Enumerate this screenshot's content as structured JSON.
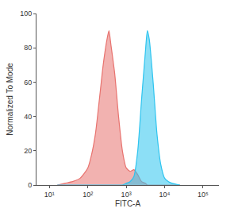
{
  "chart_data": {
    "type": "area",
    "x_label": "FITC-A",
    "y_label": "Normalized To Mode",
    "log": "x",
    "grid": false,
    "x": [
      16,
      25,
      40,
      63,
      100,
      126,
      158,
      200,
      251,
      316,
      355,
      398,
      501,
      631,
      794,
      1000,
      1259,
      1585,
      1995,
      2512,
      3162,
      3548,
      3981,
      5012,
      6310,
      7943,
      10000,
      12589,
      15849,
      25119
    ],
    "series": [
      {
        "color": "#e8736f",
        "values": [
          0,
          1,
          2,
          4,
          10,
          18,
          30,
          50,
          70,
          85,
          90,
          82,
          65,
          40,
          20,
          10,
          8,
          9,
          6,
          2,
          1,
          0,
          0,
          0,
          0,
          0,
          0,
          0,
          0,
          0
        ]
      },
      {
        "color": "#2ec4ef",
        "values": [
          0,
          0,
          0,
          0,
          0,
          0,
          0,
          0,
          0,
          0,
          0,
          0,
          0,
          0,
          0,
          1,
          2,
          5,
          20,
          50,
          78,
          90,
          85,
          60,
          30,
          12,
          4,
          2,
          1,
          0
        ]
      }
    ],
    "xlim": [
      4.6,
      260000
    ],
    "xticks": [
      {
        "value": 10,
        "label": "10¹"
      },
      {
        "value": 100,
        "label": "10²"
      },
      {
        "value": 1000,
        "label": "10³"
      },
      {
        "value": 10000,
        "label": "10⁴"
      },
      {
        "value": 100000,
        "label": "10⁵"
      }
    ],
    "ylim": [
      0,
      100
    ],
    "yticks": [
      0,
      20,
      40,
      60,
      80,
      100
    ]
  }
}
